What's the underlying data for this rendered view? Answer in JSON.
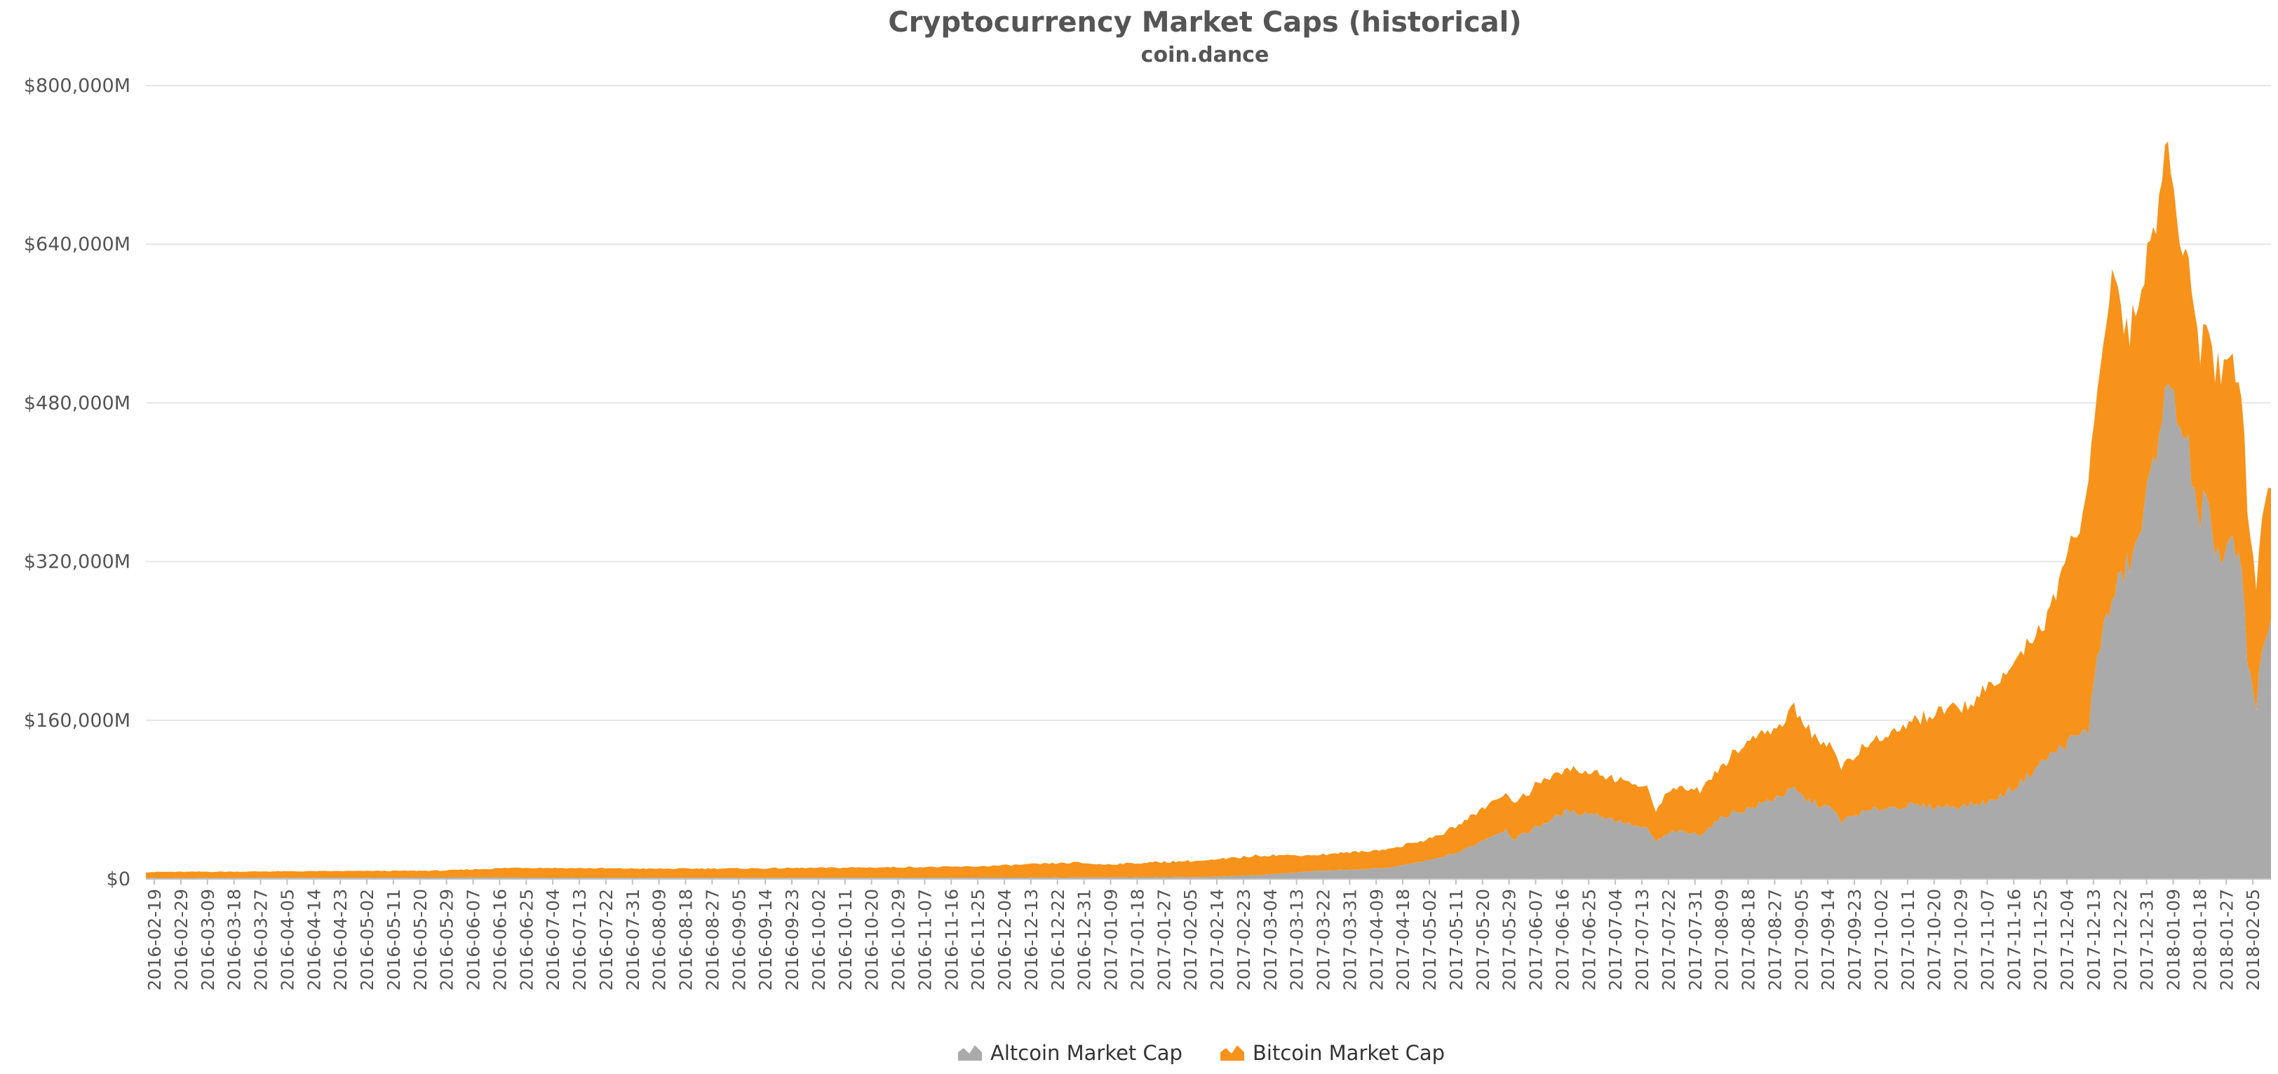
{
  "chart_data": {
    "type": "area",
    "stacked": true,
    "title": "Cryptocurrency Market Caps (historical)",
    "subtitle": "coin.dance",
    "xlabel": "",
    "ylabel": "",
    "ylim": [
      0,
      800000
    ],
    "y_ticks": [
      {
        "value": 0,
        "label": "$0"
      },
      {
        "value": 160000,
        "label": "$160,000M"
      },
      {
        "value": 320000,
        "label": "$320,000M"
      },
      {
        "value": 480000,
        "label": "$480,000M"
      },
      {
        "value": 640000,
        "label": "$640,000M"
      },
      {
        "value": 800000,
        "label": "$800,000M"
      }
    ],
    "grid": true,
    "legend_position": "bottom-center",
    "x_tick_labels": [
      "2016-02-19",
      "2016-02-29",
      "2016-03-09",
      "2016-03-18",
      "2016-03-27",
      "2016-04-05",
      "2016-04-14",
      "2016-04-23",
      "2016-05-02",
      "2016-05-11",
      "2016-05-20",
      "2016-05-29",
      "2016-06-07",
      "2016-06-16",
      "2016-06-25",
      "2016-07-04",
      "2016-07-13",
      "2016-07-22",
      "2016-07-31",
      "2016-08-09",
      "2016-08-18",
      "2016-08-27",
      "2016-09-05",
      "2016-09-14",
      "2016-09-23",
      "2016-10-02",
      "2016-10-11",
      "2016-10-20",
      "2016-10-29",
      "2016-11-07",
      "2016-11-16",
      "2016-11-25",
      "2016-12-04",
      "2016-12-13",
      "2016-12-22",
      "2016-12-31",
      "2017-01-09",
      "2017-01-18",
      "2017-01-27",
      "2017-02-05",
      "2017-02-14",
      "2017-02-23",
      "2017-03-04",
      "2017-03-13",
      "2017-03-22",
      "2017-03-31",
      "2017-04-09",
      "2017-04-18",
      "2017-05-02",
      "2017-05-11",
      "2017-05-20",
      "2017-05-29",
      "2017-06-07",
      "2017-06-16",
      "2017-06-25",
      "2017-07-04",
      "2017-07-13",
      "2017-07-22",
      "2017-07-31",
      "2017-08-09",
      "2017-08-18",
      "2017-08-27",
      "2017-09-05",
      "2017-09-14",
      "2017-09-23",
      "2017-10-02",
      "2017-10-11",
      "2017-10-20",
      "2017-10-29",
      "2017-11-07",
      "2017-11-16",
      "2017-11-25",
      "2017-12-04",
      "2017-12-13",
      "2017-12-22",
      "2017-12-31",
      "2018-01-09",
      "2018-01-18",
      "2018-01-27",
      "2018-02-05"
    ],
    "x_range": [
      "2016-02-19",
      "2018-02-10"
    ],
    "series": [
      {
        "name": "Altcoin Market Cap",
        "color": "#aaaaaa",
        "points": [
          [
            "2016-02-19",
            1000
          ],
          [
            "2016-06-16",
            1500
          ],
          [
            "2016-09-14",
            1200
          ],
          [
            "2016-12-31",
            1500
          ],
          [
            "2017-02-14",
            2000
          ],
          [
            "2017-03-04",
            4000
          ],
          [
            "2017-03-22",
            8000
          ],
          [
            "2017-04-09",
            10000
          ],
          [
            "2017-04-18",
            12000
          ],
          [
            "2017-05-02",
            20000
          ],
          [
            "2017-05-11",
            28000
          ],
          [
            "2017-05-20",
            42000
          ],
          [
            "2017-05-26",
            50000
          ],
          [
            "2017-05-29",
            40000
          ],
          [
            "2017-06-07",
            55000
          ],
          [
            "2017-06-16",
            68000
          ],
          [
            "2017-06-25",
            66000
          ],
          [
            "2017-07-04",
            58000
          ],
          [
            "2017-07-13",
            50000
          ],
          [
            "2017-07-16",
            38000
          ],
          [
            "2017-07-22",
            48000
          ],
          [
            "2017-07-31",
            45000
          ],
          [
            "2017-08-09",
            65000
          ],
          [
            "2017-08-18",
            72000
          ],
          [
            "2017-08-27",
            84000
          ],
          [
            "2017-09-01",
            90000
          ],
          [
            "2017-09-05",
            80000
          ],
          [
            "2017-09-14",
            70000
          ],
          [
            "2017-09-17",
            58000
          ],
          [
            "2017-09-23",
            66000
          ],
          [
            "2017-10-02",
            72000
          ],
          [
            "2017-10-11",
            74000
          ],
          [
            "2017-10-20",
            73000
          ],
          [
            "2017-10-29",
            74000
          ],
          [
            "2017-11-07",
            78000
          ],
          [
            "2017-11-16",
            95000
          ],
          [
            "2017-11-25",
            120000
          ],
          [
            "2017-12-04",
            140000
          ],
          [
            "2017-12-10",
            150000
          ],
          [
            "2017-12-13",
            230000
          ],
          [
            "2017-12-18",
            280000
          ],
          [
            "2017-12-22",
            310000
          ],
          [
            "2017-12-26",
            330000
          ],
          [
            "2017-12-31",
            400000
          ],
          [
            "2018-01-04",
            480000
          ],
          [
            "2018-01-09",
            480000
          ],
          [
            "2018-01-13",
            430000
          ],
          [
            "2018-01-17",
            340000
          ],
          [
            "2018-01-18",
            380000
          ],
          [
            "2018-01-24",
            320000
          ],
          [
            "2018-01-27",
            340000
          ],
          [
            "2018-01-31",
            310000
          ],
          [
            "2018-02-02",
            220000
          ],
          [
            "2018-02-05",
            170000
          ],
          [
            "2018-02-07",
            240000
          ],
          [
            "2018-02-10",
            255000
          ]
        ]
      },
      {
        "name": "Bitcoin Market Cap",
        "color": "#f7931a",
        "points": [
          [
            "2016-02-19",
            6000
          ],
          [
            "2016-05-29",
            7000
          ],
          [
            "2016-06-16",
            9000
          ],
          [
            "2016-06-25",
            10000
          ],
          [
            "2016-08-09",
            9000
          ],
          [
            "2016-09-14",
            9500
          ],
          [
            "2016-10-29",
            10500
          ],
          [
            "2016-11-25",
            11000
          ],
          [
            "2016-12-31",
            15000
          ],
          [
            "2017-01-09",
            13000
          ],
          [
            "2017-02-05",
            16000
          ],
          [
            "2017-02-14",
            16500
          ],
          [
            "2017-03-04",
            20000
          ],
          [
            "2017-03-22",
            16000
          ],
          [
            "2017-04-09",
            18000
          ],
          [
            "2017-04-18",
            19000
          ],
          [
            "2017-05-02",
            22000
          ],
          [
            "2017-05-11",
            28000
          ],
          [
            "2017-05-20",
            34000
          ],
          [
            "2017-05-26",
            38000
          ],
          [
            "2017-05-29",
            36000
          ],
          [
            "2017-06-07",
            44000
          ],
          [
            "2017-06-16",
            42000
          ],
          [
            "2017-06-25",
            42000
          ],
          [
            "2017-07-04",
            42000
          ],
          [
            "2017-07-13",
            40000
          ],
          [
            "2017-07-16",
            32000
          ],
          [
            "2017-07-22",
            45000
          ],
          [
            "2017-07-31",
            45000
          ],
          [
            "2017-08-09",
            55000
          ],
          [
            "2017-08-18",
            70000
          ],
          [
            "2017-08-27",
            72000
          ],
          [
            "2017-09-01",
            80000
          ],
          [
            "2017-09-05",
            74000
          ],
          [
            "2017-09-14",
            60000
          ],
          [
            "2017-09-17",
            55000
          ],
          [
            "2017-09-23",
            62000
          ],
          [
            "2017-10-02",
            72000
          ],
          [
            "2017-10-11",
            85000
          ],
          [
            "2017-10-20",
            95000
          ],
          [
            "2017-10-29",
            100000
          ],
          [
            "2017-11-07",
            115000
          ],
          [
            "2017-11-16",
            125000
          ],
          [
            "2017-11-25",
            140000
          ],
          [
            "2017-12-04",
            190000
          ],
          [
            "2017-12-10",
            240000
          ],
          [
            "2017-12-13",
            260000
          ],
          [
            "2017-12-18",
            330000
          ],
          [
            "2017-12-22",
            250000
          ],
          [
            "2017-12-26",
            240000
          ],
          [
            "2017-12-31",
            230000
          ],
          [
            "2018-01-04",
            250000
          ],
          [
            "2018-01-09",
            200000
          ],
          [
            "2018-01-13",
            190000
          ],
          [
            "2018-01-17",
            170000
          ],
          [
            "2018-01-18",
            180000
          ],
          [
            "2018-01-24",
            190000
          ],
          [
            "2018-01-27",
            185000
          ],
          [
            "2018-01-31",
            170000
          ],
          [
            "2018-02-02",
            150000
          ],
          [
            "2018-02-05",
            120000
          ],
          [
            "2018-02-07",
            140000
          ],
          [
            "2018-02-10",
            140000
          ]
        ]
      }
    ]
  }
}
